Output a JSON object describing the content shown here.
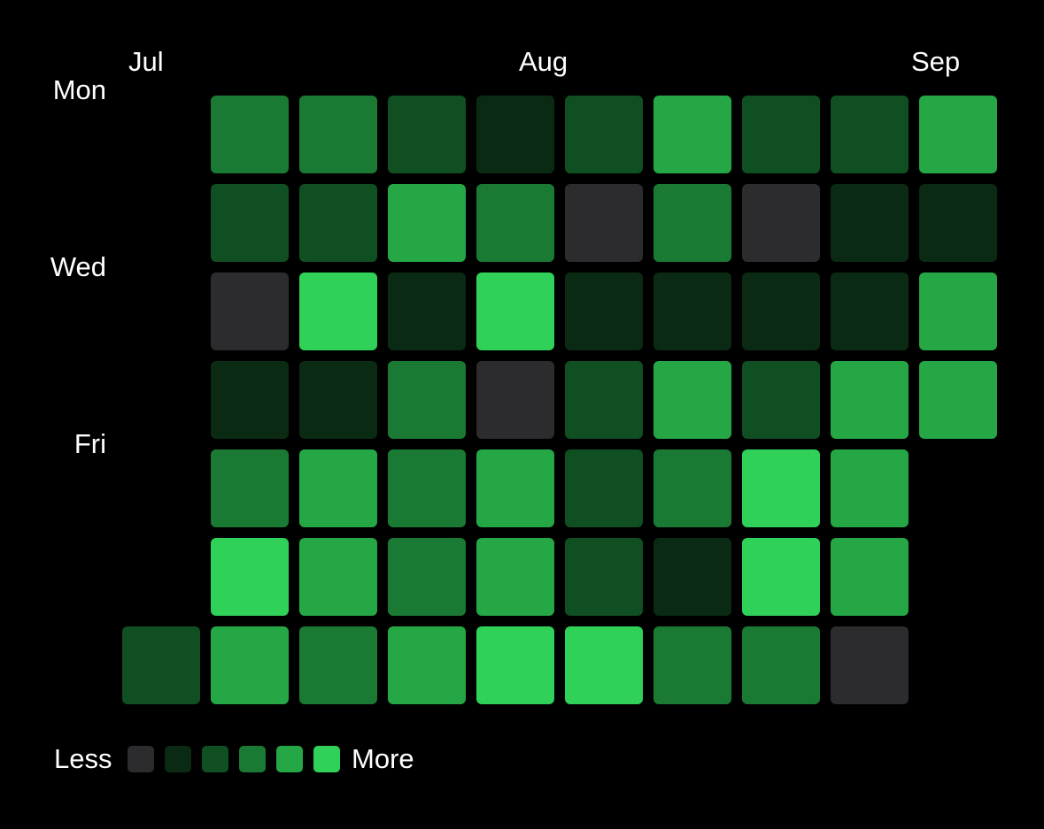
{
  "months": [
    "Jul",
    "Aug",
    "Sep"
  ],
  "days": [
    "Mon",
    "Wed",
    "Fri"
  ],
  "legend": {
    "less_label": "Less",
    "more_label": "More",
    "levels": [
      "#2c2c2e",
      "#0b2a13",
      "#104f22",
      "#1a7a33",
      "#25a745",
      "#30d158"
    ]
  },
  "contributions": {
    "first_row": 6,
    "weeks": [
      [
        null,
        null,
        null,
        null,
        null,
        null,
        2
      ],
      [
        3,
        2,
        0,
        1,
        3,
        5,
        4
      ],
      [
        3,
        2,
        5,
        1,
        4,
        4,
        3
      ],
      [
        2,
        4,
        1,
        3,
        3,
        3,
        4
      ],
      [
        1,
        3,
        5,
        0,
        4,
        4,
        5
      ],
      [
        2,
        0,
        1,
        2,
        2,
        2,
        5
      ],
      [
        4,
        3,
        1,
        4,
        3,
        1,
        3
      ],
      [
        2,
        0,
        1,
        2,
        5,
        5,
        3
      ],
      [
        2,
        1,
        1,
        4,
        4,
        4,
        0
      ],
      [
        4,
        1,
        4,
        4,
        null,
        null,
        null
      ]
    ]
  }
}
